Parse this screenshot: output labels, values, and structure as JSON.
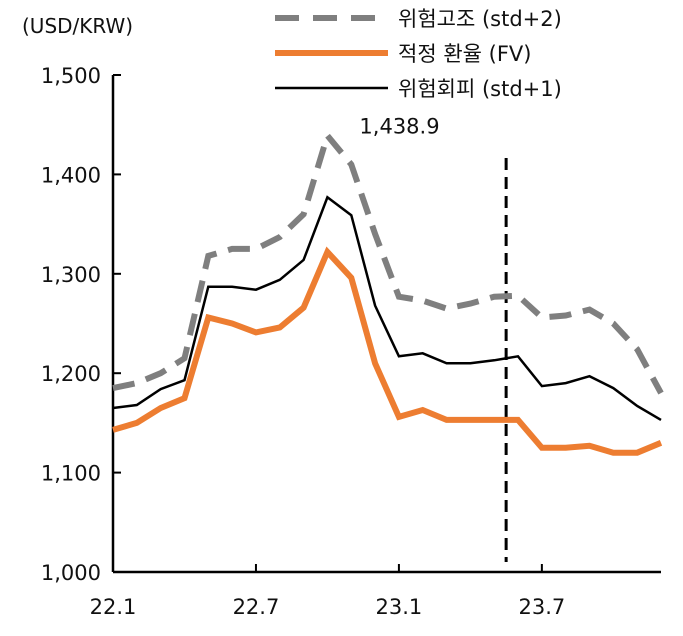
{
  "chart_data": {
    "type": "line",
    "unit_label": "(USD/KRW)",
    "ylim": [
      1000,
      1500
    ],
    "yticks": [
      1000,
      1100,
      1200,
      1300,
      1400,
      1500
    ],
    "ytick_labels": [
      "1,000",
      "1,100",
      "1,200",
      "1,300",
      "1,400",
      "1,500"
    ],
    "xticks": [
      {
        "index": 0,
        "label": "22.1"
      },
      {
        "index": 6,
        "label": "22.7"
      },
      {
        "index": 12,
        "label": "23.1"
      },
      {
        "index": 18,
        "label": "23.7"
      }
    ],
    "n_points": 24,
    "series": [
      {
        "name": "위험고조 (std+2)",
        "color": "#7f7f7f",
        "style": "dashed",
        "values": [
          1185,
          1190,
          1200,
          1215,
          1318,
          1325,
          1325,
          1337,
          1360,
          1439,
          1410,
          1340,
          1277,
          1273,
          1265,
          1270,
          1277,
          1278,
          1256,
          1258,
          1264,
          1250,
          1224,
          1180
        ]
      },
      {
        "name": "적정 환율 (FV)",
        "color": "#ed7d31",
        "style": "solid-thick",
        "values": [
          1143,
          1150,
          1165,
          1175,
          1256,
          1250,
          1241,
          1246,
          1266,
          1322,
          1296,
          1210,
          1156,
          1163,
          1153,
          1153,
          1153,
          1153,
          1125,
          1125,
          1127,
          1120,
          1120,
          1130
        ]
      },
      {
        "name": "위험회피 (std+1)",
        "color": "#000000",
        "style": "solid-thin",
        "values": [
          1165,
          1168,
          1184,
          1193,
          1287,
          1287,
          1284,
          1294,
          1314,
          1377,
          1359,
          1268,
          1217,
          1220,
          1210,
          1210,
          1213,
          1217,
          1187,
          1190,
          1197,
          1185,
          1167,
          1153
        ]
      }
    ],
    "annotations": [
      {
        "text": "1,438.9",
        "series_index": 0,
        "point_index": 9
      }
    ],
    "vertical_line": {
      "after_index": 16.5,
      "style": "dashed"
    },
    "grid": false,
    "legend_position": "top-right"
  }
}
